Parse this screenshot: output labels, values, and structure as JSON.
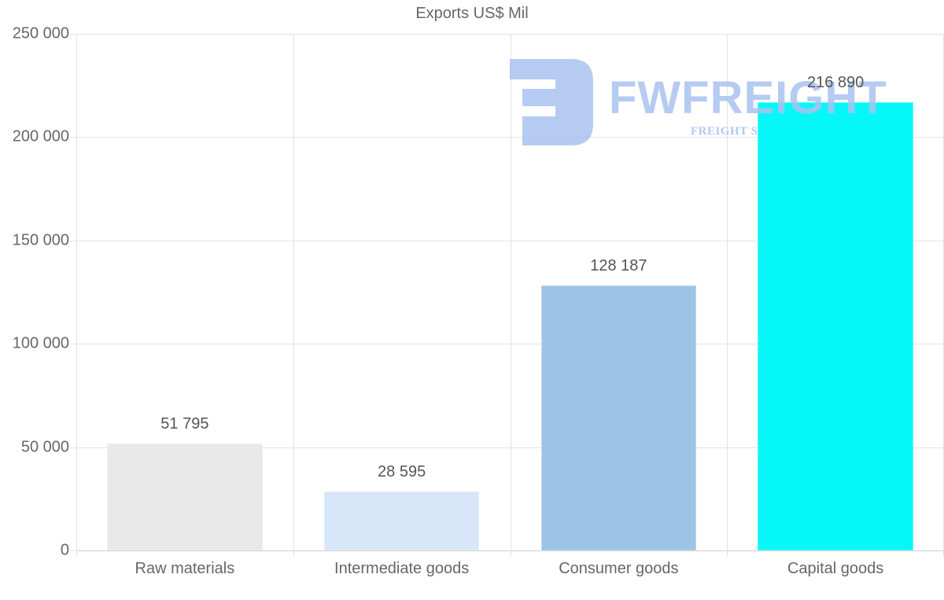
{
  "chart_data": {
    "type": "bar",
    "title": "Exports US$ Mil",
    "xlabel": "",
    "ylabel": "",
    "categories": [
      "Raw materials",
      "Intermediate goods",
      "Consumer goods",
      "Capital goods"
    ],
    "values": [
      51795,
      28595,
      128187,
      216890
    ],
    "value_labels": [
      "51 795",
      "28 595",
      "128 187",
      "216 890"
    ],
    "bar_colors": [
      "#e8e8e8",
      "#d7e6f8",
      "#9dc3e6",
      "#05f8f7"
    ],
    "ylim": [
      0,
      250000
    ],
    "y_ticks": [
      0,
      50000,
      100000,
      150000,
      200000,
      250000
    ],
    "y_tick_labels": [
      "0",
      "50 000",
      "100 000",
      "150 000",
      "200 000",
      "250 000"
    ],
    "grid": true,
    "legend": null
  },
  "watermark": {
    "brand": "FWFREIGHT",
    "tagline": "FREIGHT S",
    "color": "#a9c3f0"
  }
}
